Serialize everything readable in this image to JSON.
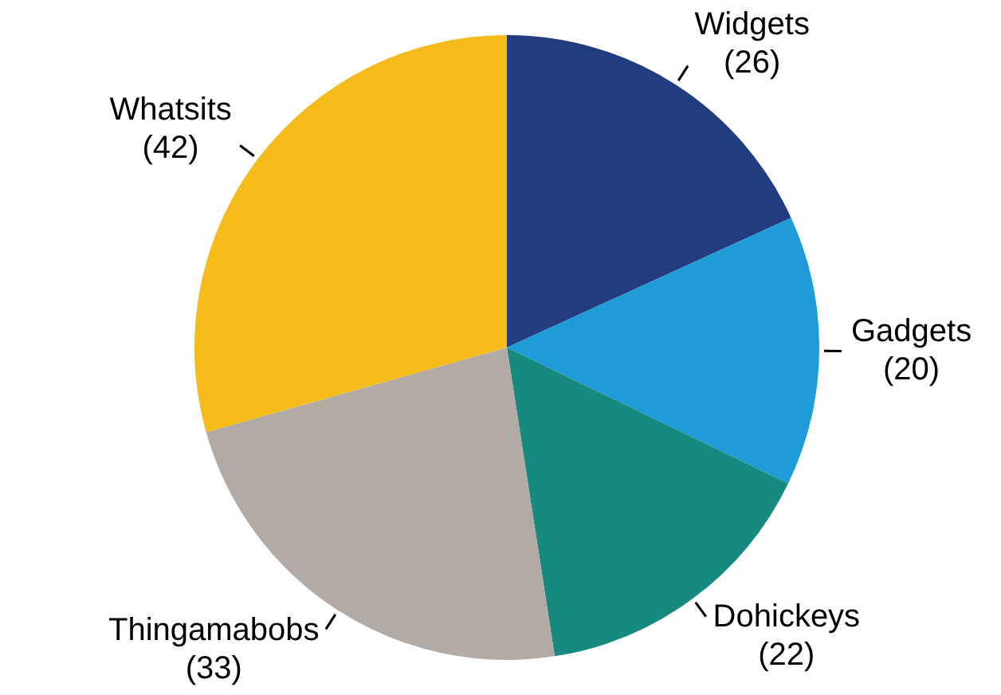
{
  "chart_data": {
    "type": "pie",
    "categories": [
      "Widgets",
      "Gadgets",
      "Dohickeys",
      "Thingamabobs",
      "Whatsits"
    ],
    "values": [
      26,
      20,
      22,
      33,
      42
    ],
    "colors": [
      "#233c80",
      "#1f9bd7",
      "#168a7f",
      "#b2aba5",
      "#f5bb18"
    ],
    "value_labels": [
      "(26)",
      "(20)",
      "(22)",
      "(33)",
      "(42)"
    ],
    "legend": false
  }
}
